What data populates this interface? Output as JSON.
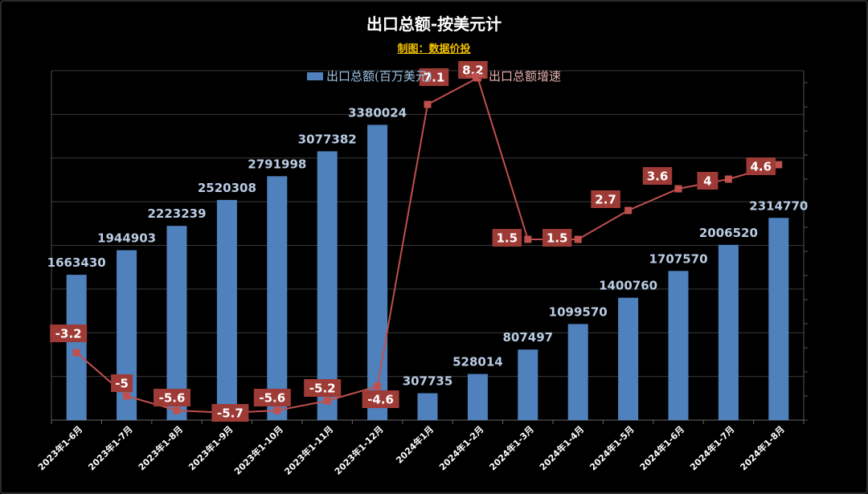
{
  "chart_data": {
    "type": "bar+line",
    "title": "出口总额-按美元计",
    "subtitle": "制图：数据价投",
    "categories": [
      "2023年1-6月",
      "2023年1-7月",
      "2023年1-8月",
      "2023年1-9月",
      "2023年1-10月",
      "2023年1-11月",
      "2023年1-12月",
      "2024年1月",
      "2024年1-2月",
      "2024年1-3月",
      "2024年1-4月",
      "2024年1-5月",
      "2024年1-6月",
      "2024年1-7月",
      "2024年1-8月"
    ],
    "series": [
      {
        "name": "出口总额(百万美元)",
        "type": "bar",
        "axis": "left",
        "color": "#4f81bd",
        "values": [
          1663430,
          1944903,
          2223239,
          2520308,
          2791998,
          3077382,
          3380024,
          307735,
          528014,
          807497,
          1099570,
          1400760,
          1707570,
          2006520,
          2314770
        ],
        "labels": [
          "1663430",
          "1944903",
          "2223239",
          "2520308",
          "2791998",
          "3077382",
          "3380024",
          "307735",
          "528014",
          "807497",
          "1099570",
          "1400760",
          "1707570",
          "2006520",
          "2314770"
        ]
      },
      {
        "name": "出口总额增速",
        "type": "line",
        "axis": "right",
        "color": "#c0504d",
        "values": [
          -3.2,
          -5,
          -5.6,
          -5.7,
          -5.6,
          -5.2,
          -4.6,
          7.1,
          8.2,
          1.5,
          1.5,
          2.7,
          3.6,
          4,
          4.6
        ],
        "labels": [
          "-3.2",
          "-5",
          "-5.6",
          "-5.7",
          "-5.6",
          "-5.2",
          "-4.6",
          "7.1",
          "8.2",
          "1.5",
          "1.5",
          "2.7",
          "3.6",
          "4",
          "4.6"
        ]
      }
    ],
    "ylim_left": [
      0,
      4000000
    ],
    "ylim_right": [
      -6,
      8.5
    ],
    "grid": true,
    "legend": "top-center"
  }
}
